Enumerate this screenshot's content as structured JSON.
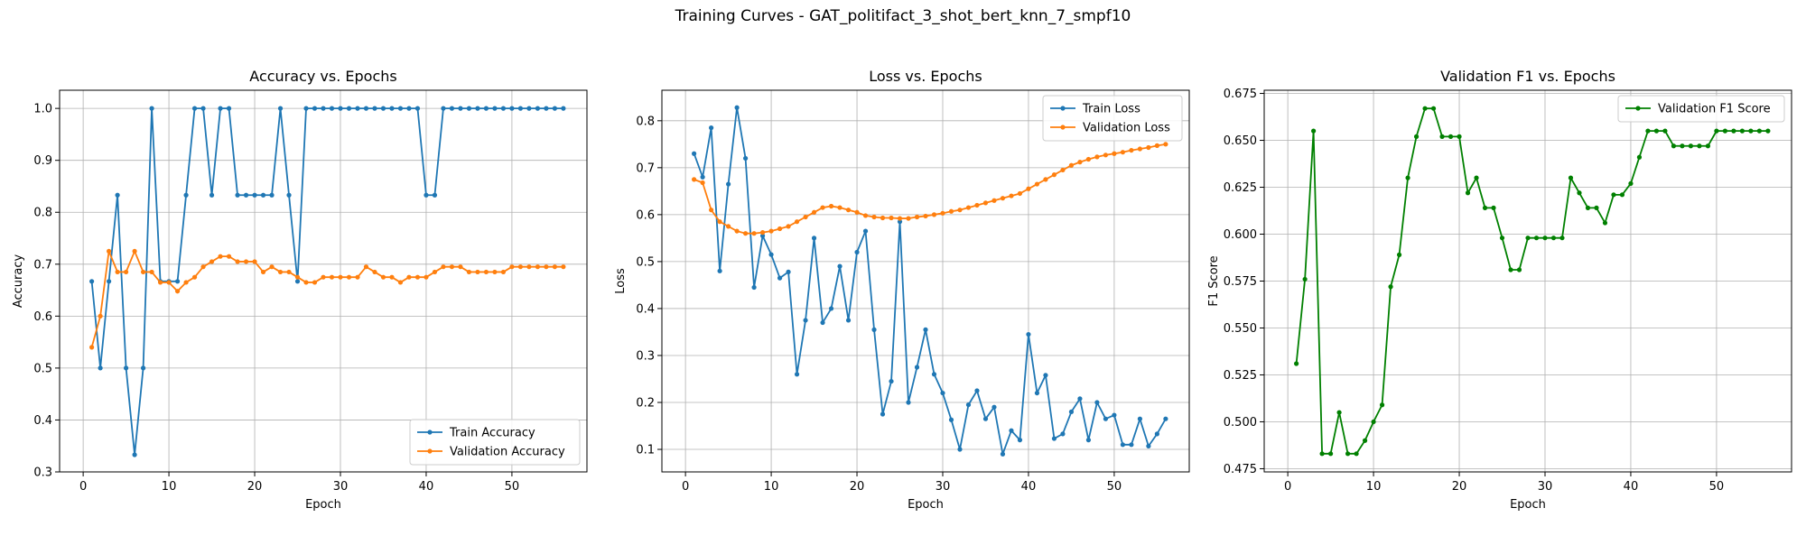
{
  "figure": {
    "suptitle": "Training Curves - GAT_politifact_3_shot_bert_knn_7_smpf10"
  },
  "chart_data": [
    {
      "type": "line",
      "title": "Accuracy vs. Epochs",
      "xlabel": "Epoch",
      "ylabel": "Accuracy",
      "xlim": [
        -2.75,
        58.75
      ],
      "ylim": [
        0.3,
        1.035
      ],
      "xticks": [
        0,
        10,
        20,
        30,
        40,
        50
      ],
      "yticks": [
        0.3,
        0.4,
        0.5,
        0.6,
        0.7,
        0.8,
        0.9,
        1.0
      ],
      "ytick_labels": [
        "0.3",
        "0.4",
        "0.5",
        "0.6",
        "0.7",
        "0.8",
        "0.9",
        "1.0"
      ],
      "grid": true,
      "legend": "lower-right",
      "series": [
        {
          "name": "Train Accuracy",
          "color": "#1f77b4",
          "x": [
            1,
            2,
            3,
            4,
            5,
            6,
            7,
            8,
            9,
            10,
            11,
            12,
            13,
            14,
            15,
            16,
            17,
            18,
            19,
            20,
            21,
            22,
            23,
            24,
            25,
            26,
            27,
            28,
            29,
            30,
            31,
            32,
            33,
            34,
            35,
            36,
            37,
            38,
            39,
            40,
            41,
            42,
            43,
            44,
            45,
            46,
            47,
            48,
            49,
            50,
            51,
            52,
            53,
            54,
            55,
            56
          ],
          "y": [
            0.667,
            0.5,
            0.667,
            0.833,
            0.5,
            0.333,
            0.5,
            1.0,
            0.667,
            0.667,
            0.667,
            0.833,
            1.0,
            1.0,
            0.833,
            1.0,
            1.0,
            0.833,
            0.833,
            0.833,
            0.833,
            0.833,
            1.0,
            0.833,
            0.667,
            1.0,
            1.0,
            1.0,
            1.0,
            1.0,
            1.0,
            1.0,
            1.0,
            1.0,
            1.0,
            1.0,
            1.0,
            1.0,
            1.0,
            0.833,
            0.833,
            1.0,
            1.0,
            1.0,
            1.0,
            1.0,
            1.0,
            1.0,
            1.0,
            1.0,
            1.0,
            1.0,
            1.0,
            1.0,
            1.0,
            1.0
          ]
        },
        {
          "name": "Validation Accuracy",
          "color": "#ff7f0e",
          "x": [
            1,
            2,
            3,
            4,
            5,
            6,
            7,
            8,
            9,
            10,
            11,
            12,
            13,
            14,
            15,
            16,
            17,
            18,
            19,
            20,
            21,
            22,
            23,
            24,
            25,
            26,
            27,
            28,
            29,
            30,
            31,
            32,
            33,
            34,
            35,
            36,
            37,
            38,
            39,
            40,
            41,
            42,
            43,
            44,
            45,
            46,
            47,
            48,
            49,
            50,
            51,
            52,
            53,
            54,
            55,
            56
          ],
          "y": [
            0.54,
            0.6,
            0.725,
            0.685,
            0.685,
            0.725,
            0.685,
            0.685,
            0.665,
            0.665,
            0.648,
            0.665,
            0.675,
            0.695,
            0.705,
            0.715,
            0.715,
            0.705,
            0.705,
            0.705,
            0.685,
            0.695,
            0.685,
            0.685,
            0.675,
            0.665,
            0.665,
            0.675,
            0.675,
            0.675,
            0.675,
            0.675,
            0.695,
            0.685,
            0.675,
            0.675,
            0.665,
            0.675,
            0.675,
            0.675,
            0.685,
            0.695,
            0.695,
            0.695,
            0.685,
            0.685,
            0.685,
            0.685,
            0.685,
            0.695,
            0.695,
            0.695,
            0.695,
            0.695,
            0.695,
            0.695
          ]
        }
      ]
    },
    {
      "type": "line",
      "title": "Loss vs. Epochs",
      "xlabel": "Epoch",
      "ylabel": "Loss",
      "xlim": [
        -2.75,
        58.75
      ],
      "ylim": [
        0.052,
        0.865
      ],
      "xticks": [
        0,
        10,
        20,
        30,
        40,
        50
      ],
      "yticks": [
        0.1,
        0.2,
        0.3,
        0.4,
        0.5,
        0.6,
        0.7,
        0.8
      ],
      "ytick_labels": [
        "0.1",
        "0.2",
        "0.3",
        "0.4",
        "0.5",
        "0.6",
        "0.7",
        "0.8"
      ],
      "grid": true,
      "legend": "upper-right",
      "series": [
        {
          "name": "Train Loss",
          "color": "#1f77b4",
          "x": [
            1,
            2,
            3,
            4,
            5,
            6,
            7,
            8,
            9,
            10,
            11,
            12,
            13,
            14,
            15,
            16,
            17,
            18,
            19,
            20,
            21,
            22,
            23,
            24,
            25,
            26,
            27,
            28,
            29,
            30,
            31,
            32,
            33,
            34,
            35,
            36,
            37,
            38,
            39,
            40,
            41,
            42,
            43,
            44,
            45,
            46,
            47,
            48,
            49,
            50,
            51,
            52,
            53,
            54,
            55,
            56
          ],
          "y": [
            0.73,
            0.68,
            0.785,
            0.48,
            0.665,
            0.828,
            0.72,
            0.445,
            0.555,
            0.515,
            0.465,
            0.478,
            0.26,
            0.375,
            0.55,
            0.37,
            0.4,
            0.49,
            0.375,
            0.52,
            0.565,
            0.355,
            0.175,
            0.245,
            0.585,
            0.2,
            0.275,
            0.355,
            0.26,
            0.22,
            0.163,
            0.1,
            0.195,
            0.225,
            0.165,
            0.19,
            0.09,
            0.14,
            0.12,
            0.345,
            0.22,
            0.258,
            0.123,
            0.133,
            0.18,
            0.208,
            0.12,
            0.2,
            0.165,
            0.173,
            0.11,
            0.11,
            0.165,
            0.107,
            0.133,
            0.165
          ]
        },
        {
          "name": "Validation Loss",
          "color": "#ff7f0e",
          "x": [
            1,
            2,
            3,
            4,
            5,
            6,
            7,
            8,
            9,
            10,
            11,
            12,
            13,
            14,
            15,
            16,
            17,
            18,
            19,
            20,
            21,
            22,
            23,
            24,
            25,
            26,
            27,
            28,
            29,
            30,
            31,
            32,
            33,
            34,
            35,
            36,
            37,
            38,
            39,
            40,
            41,
            42,
            43,
            44,
            45,
            46,
            47,
            48,
            49,
            50,
            51,
            52,
            53,
            54,
            55,
            56
          ],
          "y": [
            0.675,
            0.668,
            0.61,
            0.585,
            0.575,
            0.565,
            0.56,
            0.56,
            0.562,
            0.565,
            0.57,
            0.575,
            0.585,
            0.595,
            0.605,
            0.615,
            0.618,
            0.615,
            0.61,
            0.605,
            0.598,
            0.595,
            0.593,
            0.593,
            0.592,
            0.592,
            0.595,
            0.597,
            0.6,
            0.603,
            0.607,
            0.61,
            0.615,
            0.62,
            0.625,
            0.63,
            0.635,
            0.64,
            0.645,
            0.655,
            0.665,
            0.675,
            0.685,
            0.695,
            0.705,
            0.712,
            0.718,
            0.723,
            0.727,
            0.73,
            0.733,
            0.737,
            0.74,
            0.743,
            0.747,
            0.75
          ]
        }
      ]
    },
    {
      "type": "line",
      "title": "Validation F1 vs. Epochs",
      "xlabel": "Epoch",
      "ylabel": "F1 Score",
      "xlim": [
        -2.75,
        58.75
      ],
      "ylim": [
        0.4733,
        0.6767
      ],
      "xticks": [
        0,
        10,
        20,
        30,
        40,
        50
      ],
      "yticks": [
        0.475,
        0.5,
        0.525,
        0.55,
        0.575,
        0.6,
        0.625,
        0.65,
        0.675
      ],
      "ytick_labels": [
        "0.475",
        "0.500",
        "0.525",
        "0.550",
        "0.575",
        "0.600",
        "0.625",
        "0.650",
        "0.675"
      ],
      "grid": true,
      "legend": "upper-right",
      "series": [
        {
          "name": "Validation F1 Score",
          "color": "#008000",
          "x": [
            1,
            2,
            3,
            4,
            5,
            6,
            7,
            8,
            9,
            10,
            11,
            12,
            13,
            14,
            15,
            16,
            17,
            18,
            19,
            20,
            21,
            22,
            23,
            24,
            25,
            26,
            27,
            28,
            29,
            30,
            31,
            32,
            33,
            34,
            35,
            36,
            37,
            38,
            39,
            40,
            41,
            42,
            43,
            44,
            45,
            46,
            47,
            48,
            49,
            50,
            51,
            52,
            53,
            54,
            55,
            56
          ],
          "y": [
            0.531,
            0.576,
            0.655,
            0.483,
            0.483,
            0.505,
            0.483,
            0.483,
            0.49,
            0.5,
            0.509,
            0.572,
            0.589,
            0.63,
            0.652,
            0.667,
            0.667,
            0.652,
            0.652,
            0.652,
            0.622,
            0.63,
            0.614,
            0.614,
            0.598,
            0.581,
            0.581,
            0.598,
            0.598,
            0.598,
            0.598,
            0.598,
            0.63,
            0.622,
            0.614,
            0.614,
            0.606,
            0.621,
            0.621,
            0.627,
            0.641,
            0.655,
            0.655,
            0.655,
            0.647,
            0.647,
            0.647,
            0.647,
            0.647,
            0.655,
            0.655,
            0.655,
            0.655,
            0.655,
            0.655,
            0.655
          ]
        }
      ]
    }
  ]
}
